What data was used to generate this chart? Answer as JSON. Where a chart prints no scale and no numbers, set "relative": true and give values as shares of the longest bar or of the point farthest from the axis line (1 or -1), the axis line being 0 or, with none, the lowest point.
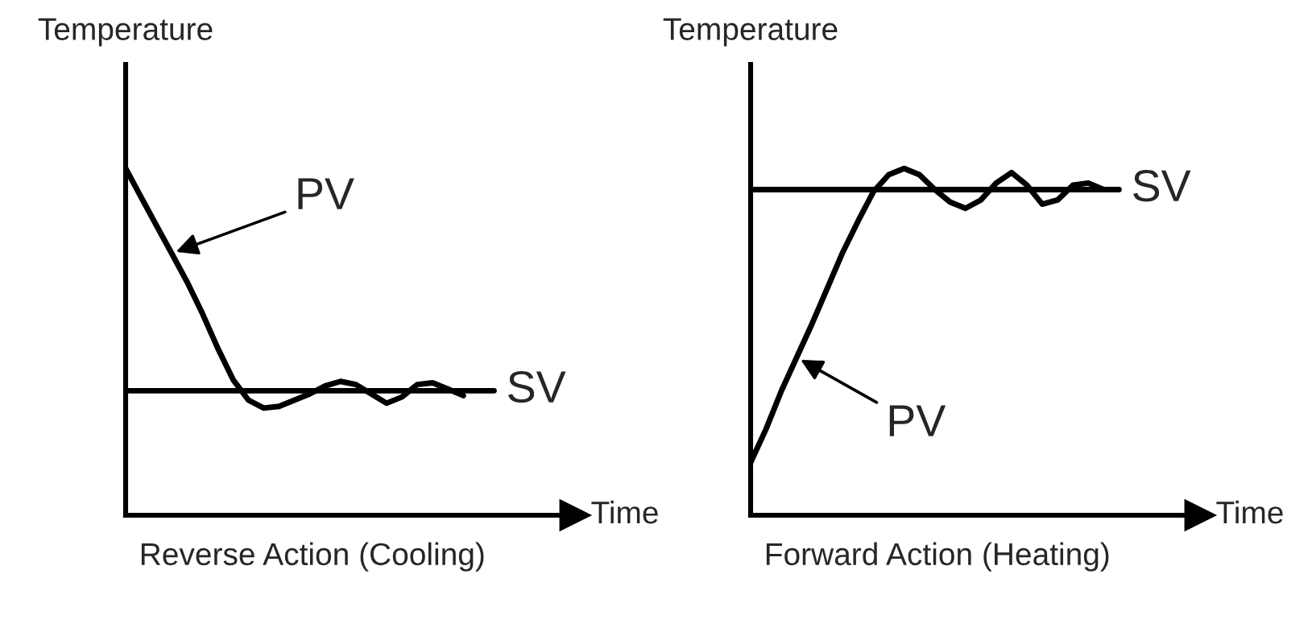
{
  "chart_data": [
    {
      "type": "line",
      "relative": true,
      "ylabel": "Temperature",
      "xlabel": "Time",
      "annotations": [
        "Reverse Action (Cooling)"
      ],
      "legend": false,
      "marker": "none",
      "line_style": "solid",
      "categories": [
        null,
        null,
        null,
        null,
        null,
        null,
        null,
        null,
        null,
        null,
        null,
        null,
        null,
        null,
        null,
        null,
        null,
        null,
        null,
        null,
        null,
        null,
        null,
        null,
        null
      ],
      "series": [
        {
          "name": "PV",
          "color": "#000000",
          "values": [
            1,
            0.918,
            0.836,
            0.755,
            0.673,
            0.582,
            0.482,
            0.391,
            0.332,
            0.309,
            0.314,
            0.332,
            0.35,
            0.373,
            0.386,
            0.377,
            0.35,
            0.323,
            0.341,
            0.377,
            0.382,
            0.364,
            0.345,
            null,
            null
          ]
        },
        {
          "name": "SV",
          "color": "#000000",
          "values": [
            0.359,
            0.359,
            0.359,
            0.359,
            0.359,
            0.359,
            0.359,
            0.359,
            0.359,
            0.359,
            0.359,
            0.359,
            0.359,
            0.359,
            0.359,
            0.359,
            0.359,
            0.359,
            0.359,
            0.359,
            0.359,
            0.359,
            0.359,
            0.359,
            0.359
          ]
        }
      ]
    },
    {
      "type": "line",
      "relative": true,
      "ylabel": "Temperature",
      "xlabel": "Time",
      "annotations": [
        "Forward Action (Heating)"
      ],
      "legend": false,
      "marker": "none",
      "line_style": "solid",
      "categories": [
        null,
        null,
        null,
        null,
        null,
        null,
        null,
        null,
        null,
        null,
        null,
        null,
        null,
        null,
        null,
        null,
        null,
        null,
        null,
        null,
        null,
        null,
        null,
        null,
        null
      ],
      "series": [
        {
          "name": "PV",
          "color": "#000000",
          "values": [
            0.152,
            0.248,
            0.358,
            0.455,
            0.552,
            0.655,
            0.758,
            0.848,
            0.933,
            0.982,
            1,
            0.982,
            0.939,
            0.903,
            0.885,
            0.909,
            0.958,
            0.988,
            0.952,
            0.897,
            0.909,
            0.952,
            0.958,
            0.939,
            null
          ]
        },
        {
          "name": "SV",
          "color": "#000000",
          "values": [
            0.939,
            0.939,
            0.939,
            0.939,
            0.939,
            0.939,
            0.939,
            0.939,
            0.939,
            0.939,
            0.939,
            0.939,
            0.939,
            0.939,
            0.939,
            0.939,
            0.939,
            0.939,
            0.939,
            0.939,
            0.939,
            0.939,
            0.939,
            0.939,
            0.939
          ]
        }
      ]
    }
  ]
}
